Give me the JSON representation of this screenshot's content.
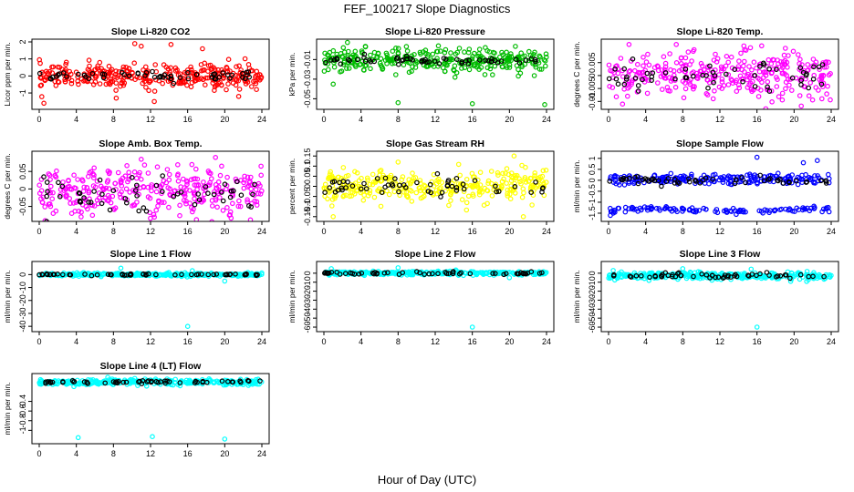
{
  "figure": {
    "title": "FEF_100217  Slope Diagnostics",
    "xlabel": "Hour of Day (UTC)"
  },
  "chart_data": [
    {
      "type": "scatter",
      "title": "Slope Li-820 CO2",
      "ylabel": "Licor ppm per min.",
      "color": "#ff0000",
      "xlim": [
        0,
        24
      ],
      "ylim": [
        -1.8,
        2.0
      ],
      "xticks": [
        0,
        4,
        8,
        12,
        16,
        20,
        24
      ],
      "yticks": [
        -1,
        0,
        1,
        2
      ],
      "center": 0.0,
      "spread": 0.35,
      "black_spread": 0.15,
      "outliers": [
        {
          "x": 10.3,
          "y": 1.9
        },
        {
          "x": 11.0,
          "y": 1.75
        },
        {
          "x": 14.2,
          "y": 1.85
        },
        {
          "x": 17.6,
          "y": 1.6
        },
        {
          "x": 0.5,
          "y": -1.6
        },
        {
          "x": 8.3,
          "y": -1.3
        },
        {
          "x": 12.4,
          "y": -1.5
        },
        {
          "x": 21.5,
          "y": -1.2
        }
      ]
    },
    {
      "type": "scatter",
      "title": "Slope Li-820 Pressure",
      "ylabel": "kPa per min.",
      "color": "#00bb00",
      "xlim": [
        0,
        24
      ],
      "ylim": [
        -0.058,
        0.008
      ],
      "xticks": [
        0,
        4,
        8,
        12,
        16,
        20,
        24
      ],
      "yticks": [
        -0.05,
        -0.03,
        -0.01
      ],
      "center": -0.011,
      "spread": 0.006,
      "black_spread": 0.002,
      "outliers": [
        {
          "x": 8.0,
          "y": -0.054
        },
        {
          "x": 16.0,
          "y": -0.055
        },
        {
          "x": 23.8,
          "y": -0.056
        },
        {
          "x": 1.0,
          "y": -0.035
        },
        {
          "x": 9.2,
          "y": -0.023
        }
      ]
    },
    {
      "type": "scatter",
      "title": "Slope Li-820 Temp.",
      "ylabel": "degrees C per min.",
      "color": "#ff00ff",
      "xlim": [
        0,
        24
      ],
      "ylim": [
        -0.012,
        0.013
      ],
      "xticks": [
        0,
        4,
        8,
        12,
        16,
        20,
        24
      ],
      "yticks": [
        -0.01,
        -0.005,
        0.0,
        0.005
      ],
      "center": 0.0,
      "spread": 0.0045,
      "black_spread": 0.003,
      "outliers": [
        {
          "x": 2.2,
          "y": 0.012
        },
        {
          "x": 7.3,
          "y": 0.012
        },
        {
          "x": 16.5,
          "y": 0.0115
        },
        {
          "x": 1.5,
          "y": -0.011
        }
      ]
    },
    {
      "type": "scatter",
      "title": "Slope Amb. Box Temp.",
      "ylabel": "degrees C per min.",
      "color": "#ff00ff",
      "xlim": [
        0,
        24
      ],
      "ylim": [
        -0.085,
        0.1
      ],
      "xticks": [
        0,
        4,
        8,
        12,
        16,
        20,
        24
      ],
      "yticks": [
        -0.05,
        0.0,
        0.05
      ],
      "center": -0.01,
      "spread": 0.035,
      "black_spread": 0.025,
      "outliers": [
        {
          "x": 11.0,
          "y": 0.085
        },
        {
          "x": 19.0,
          "y": 0.09
        },
        {
          "x": 20.5,
          "y": -0.075
        },
        {
          "x": 3.5,
          "y": -0.07
        }
      ]
    },
    {
      "type": "scatter",
      "title": "Slope Gas Stream RH",
      "ylabel": "percent per min.",
      "color": "#ffff00",
      "xlim": [
        0,
        24
      ],
      "ylim": [
        -0.16,
        0.16
      ],
      "xticks": [
        0,
        4,
        8,
        12,
        16,
        20,
        24
      ],
      "yticks": [
        -0.15,
        -0.1,
        -0.05,
        0.0,
        0.05,
        0.1,
        0.15
      ],
      "center": 0.0,
      "spread": 0.04,
      "black_spread": 0.025,
      "outliers": [
        {
          "x": 1.0,
          "y": -0.15
        },
        {
          "x": 20.5,
          "y": 0.15
        },
        {
          "x": 21.5,
          "y": -0.15
        },
        {
          "x": 8.0,
          "y": 0.12
        }
      ]
    },
    {
      "type": "scatter",
      "title": "Slope Sample Flow",
      "ylabel": "ml/min per min.",
      "color": "#0000ff",
      "xlim": [
        0,
        24
      ],
      "ylim": [
        -1.75,
        1.2
      ],
      "xticks": [
        0,
        4,
        8,
        12,
        16,
        20,
        24
      ],
      "yticks": [
        -1.5,
        -1.0,
        -0.5,
        0.0,
        0.5,
        1.0
      ],
      "center": 0.0,
      "spread": 0.12,
      "black_spread": 0.08,
      "band2_center": -1.35,
      "outliers": [
        {
          "x": 16.0,
          "y": 1.05
        },
        {
          "x": 21.0,
          "y": 0.8
        },
        {
          "x": 22.5,
          "y": 0.9
        },
        {
          "x": 0.2,
          "y": -1.6
        }
      ]
    },
    {
      "type": "scatter",
      "title": "Slope Line 1 Flow",
      "ylabel": "ml/min per min.",
      "color": "#00ffff",
      "xlim": [
        0,
        24
      ],
      "ylim": [
        -42,
        8
      ],
      "xticks": [
        0,
        4,
        8,
        12,
        16,
        20,
        24
      ],
      "yticks": [
        -40,
        -30,
        -20,
        -10,
        0
      ],
      "center": 0.0,
      "spread": 0.6,
      "black_spread": 0.3,
      "outliers": [
        {
          "x": 16.0,
          "y": -40
        },
        {
          "x": 8.8,
          "y": 5
        },
        {
          "x": 16.5,
          "y": 3
        },
        {
          "x": 20.0,
          "y": -5
        }
      ]
    },
    {
      "type": "scatter",
      "title": "Slope Line 2 Flow",
      "ylabel": "ml/min per min.",
      "color": "#00ffff",
      "xlim": [
        0,
        24
      ],
      "ylim": [
        -62,
        10
      ],
      "xticks": [
        0,
        4,
        8,
        12,
        16,
        20,
        24
      ],
      "yticks": [
        -60,
        -50,
        -40,
        -30,
        -20,
        -10,
        0
      ],
      "center": 0.0,
      "spread": 1.0,
      "black_spread": 0.8,
      "outliers": [
        {
          "x": 16.0,
          "y": -60
        },
        {
          "x": 0.8,
          "y": 5
        },
        {
          "x": 8.0,
          "y": 6
        },
        {
          "x": 20.0,
          "y": -5
        }
      ]
    },
    {
      "type": "scatter",
      "title": "Slope Line 3 Flow",
      "ylabel": "ml/min per min.",
      "color": "#00ffff",
      "xlim": [
        0,
        24
      ],
      "ylim": [
        -62,
        10
      ],
      "xticks": [
        0,
        4,
        8,
        12,
        16,
        20,
        24
      ],
      "yticks": [
        -60,
        -50,
        -40,
        -30,
        -20,
        -10,
        0
      ],
      "center": -3.0,
      "spread": 2.0,
      "black_spread": 1.5,
      "outliers": [
        {
          "x": 16.0,
          "y": -60
        },
        {
          "x": 8.0,
          "y": 5
        },
        {
          "x": 0.5,
          "y": 3
        }
      ]
    },
    {
      "type": "scatter",
      "title": "Slope Line 4 (LT) Flow",
      "ylabel": "ml/min per min.",
      "color": "#00ffff",
      "xlim": [
        0,
        24
      ],
      "ylim": [
        -1.22,
        0.12
      ],
      "xticks": [
        0,
        4,
        8,
        12,
        16,
        20,
        24
      ],
      "yticks": [
        -1.0,
        -0.8,
        -0.6,
        -0.4
      ],
      "center": 0.0,
      "spread": 0.03,
      "black_spread": 0.02,
      "outliers": [
        {
          "x": 4.2,
          "y": -1.15
        },
        {
          "x": 12.2,
          "y": -1.13
        },
        {
          "x": 20.0,
          "y": -1.18
        }
      ]
    }
  ]
}
